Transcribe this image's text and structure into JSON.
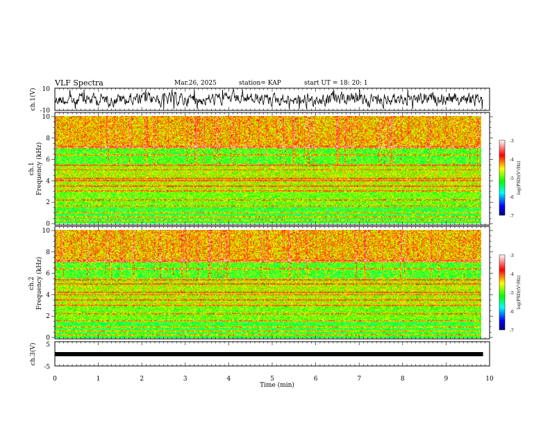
{
  "header": {
    "title": "VLF Spectra",
    "date": "Mar.26, 2025",
    "station": "station= KAP",
    "start": "start  UT  =   18: 20: 1"
  },
  "chart_data": [
    {
      "id": "ch1-waveform",
      "type": "line",
      "ylabel": "ch.1(V)",
      "ylim": [
        -10,
        10
      ],
      "ytick_labels": [
        "10",
        "-10"
      ],
      "xlim": [
        0,
        10
      ],
      "x_extent": [
        0,
        9.85
      ],
      "series": [
        {
          "description_color": "#000000"
        }
      ]
    },
    {
      "id": "ch1-spectrogram",
      "type": "heatmap",
      "ylabel": "ch.1\nFrequency  (kHz)",
      "ylabel_lines": [
        "ch.1",
        "Frequency  (kHz)"
      ],
      "ylim": [
        0,
        10
      ],
      "ytick_labels": [
        "0",
        "2",
        "4",
        "6",
        "8",
        "10"
      ],
      "xlim": [
        0,
        10
      ],
      "x_extent": [
        0,
        9.85
      ],
      "colorbar": {
        "label": "log(PSD)(V²/Hz)",
        "range": [
          -7,
          -3
        ],
        "tick_labels": [
          "-3",
          "-4",
          "-5",
          "-6",
          "-7"
        ],
        "colors": [
          "#000080",
          "#0000ff",
          "#00ffff",
          "#00ff00",
          "#ffff00",
          "#ff0000",
          "#ffffff"
        ]
      },
      "lines_khz": [
        0.3,
        0.6,
        1.0,
        1.6,
        2.2,
        3.0,
        3.5,
        4.0,
        4.2,
        5.0,
        5.4,
        6.4,
        7.2
      ]
    },
    {
      "id": "ch2-spectrogram",
      "type": "heatmap",
      "ylabel": "ch.2\nFrequency  (kHz)",
      "ylabel_lines": [
        "ch.2",
        "Frequency  (kHz)"
      ],
      "ylim": [
        0,
        10
      ],
      "ytick_labels": [
        "0",
        "2",
        "4",
        "6",
        "8",
        "10"
      ],
      "xlim": [
        0,
        10
      ],
      "x_extent": [
        0,
        9.85
      ],
      "colorbar": {
        "label": "log(PSD)(V²/Hz)",
        "range": [
          -7,
          -3
        ],
        "tick_labels": [
          "-3",
          "-4",
          "-5",
          "-6",
          "-7"
        ],
        "colors": [
          "#000080",
          "#0000ff",
          "#00ffff",
          "#00ff00",
          "#ffff00",
          "#ff0000",
          "#ffffff"
        ]
      },
      "lines_khz": [
        0.3,
        0.6,
        1.0,
        1.6,
        2.2,
        3.0,
        3.5,
        4.0,
        4.2,
        5.0,
        5.4,
        6.4,
        7.2
      ]
    },
    {
      "id": "ch3-waveform",
      "type": "line",
      "ylabel": "ch.3(V)",
      "ylim": [
        -5,
        5
      ],
      "ytick_labels": [
        "5",
        "-5"
      ],
      "xlim": [
        0,
        10
      ],
      "x_extent": [
        0,
        9.85
      ],
      "xlabel": "Time  (min)",
      "xtick_labels": [
        "0",
        "1",
        "2",
        "3",
        "4",
        "5",
        "6",
        "7",
        "8",
        "9",
        "10"
      ],
      "series": [
        {
          "values_note_flat": 0
        }
      ]
    }
  ]
}
